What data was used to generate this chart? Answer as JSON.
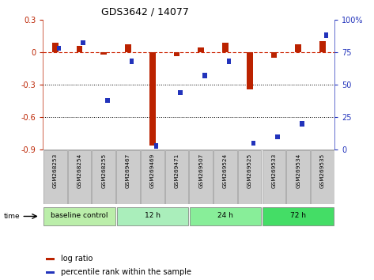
{
  "title": "GDS3642 / 14077",
  "samples": [
    "GSM268253",
    "GSM268254",
    "GSM268255",
    "GSM269467",
    "GSM269469",
    "GSM269471",
    "GSM269507",
    "GSM269524",
    "GSM269525",
    "GSM269533",
    "GSM269534",
    "GSM269535"
  ],
  "log_ratio": [
    0.09,
    0.06,
    -0.02,
    0.07,
    -0.86,
    -0.04,
    0.04,
    0.09,
    -0.34,
    -0.05,
    0.07,
    0.1
  ],
  "percentile_rank": [
    78,
    82,
    38,
    68,
    3,
    44,
    57,
    68,
    5,
    10,
    20,
    88
  ],
  "ylim_left": [
    -0.9,
    0.3
  ],
  "ylim_right": [
    0,
    100
  ],
  "yticks_left": [
    -0.9,
    -0.6,
    -0.3,
    0.0,
    0.3
  ],
  "yticks_right": [
    0,
    25,
    50,
    75,
    100
  ],
  "bar_color_red": "#bb2200",
  "bar_color_blue": "#2233bb",
  "dashed_line_color": "#cc2200",
  "group_edges": [
    0,
    3,
    6,
    9,
    12
  ],
  "group_labels": [
    "baseline control",
    "12 h",
    "24 h",
    "72 h"
  ],
  "group_colors": [
    "#bbeeaa",
    "#aaeebb",
    "#88ee99",
    "#44dd66"
  ],
  "bg_color": "#ffffff",
  "box_bg": "#cccccc",
  "box_edge": "#999999"
}
